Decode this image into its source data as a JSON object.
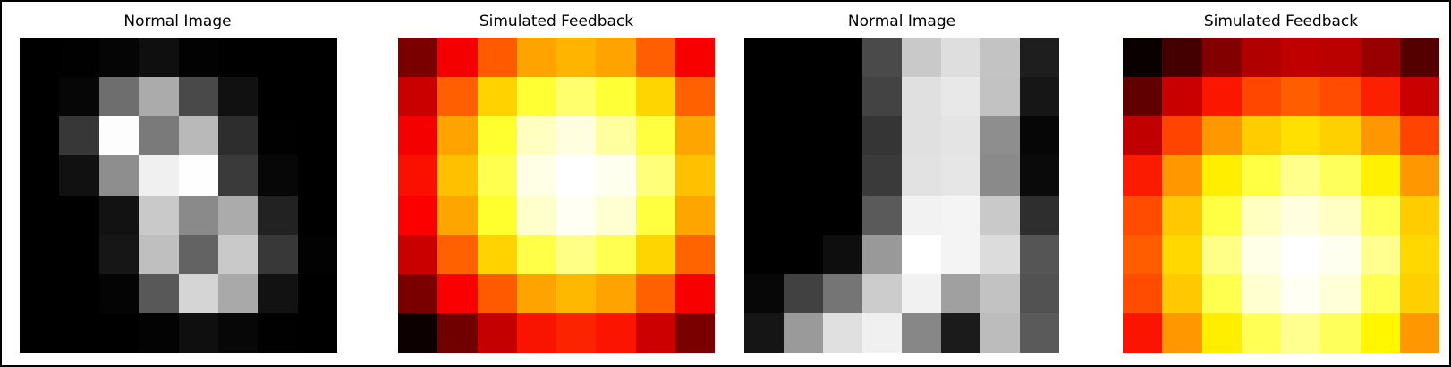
{
  "figure": {
    "background_color": "#ffffff",
    "border_color": "#000000"
  },
  "chart_data": [
    {
      "type": "heatmap",
      "title": "Normal Image",
      "colormap": "gray",
      "rows": 8,
      "cols": 8,
      "axes": "off",
      "cell_colors": [
        [
          "#000000",
          "#010101",
          "#050505",
          "#0f0f0f",
          "#020202",
          "#000000",
          "#000000",
          "#000000"
        ],
        [
          "#000000",
          "#060606",
          "#6e6e6e",
          "#ababab",
          "#494949",
          "#111111",
          "#000000",
          "#000000"
        ],
        [
          "#000000",
          "#373737",
          "#fdfdfd",
          "#7a7a7a",
          "#b9b9b9",
          "#2d2d2d",
          "#010101",
          "#000000"
        ],
        [
          "#000000",
          "#111111",
          "#8e8e8e",
          "#f0f0f0",
          "#fefefe",
          "#3a3a3a",
          "#070707",
          "#000000"
        ],
        [
          "#000000",
          "#000000",
          "#121212",
          "#c9c9c9",
          "#8a8a8a",
          "#ababab",
          "#222222",
          "#000000"
        ],
        [
          "#000000",
          "#000000",
          "#161616",
          "#bfbfbf",
          "#636363",
          "#c9c9c9",
          "#383838",
          "#020202"
        ],
        [
          "#000000",
          "#000000",
          "#040404",
          "#585858",
          "#d5d5d5",
          "#a9a9a9",
          "#121212",
          "#000000"
        ],
        [
          "#000000",
          "#000000",
          "#000000",
          "#030303",
          "#0f0f0f",
          "#070707",
          "#010101",
          "#000000"
        ]
      ]
    },
    {
      "type": "heatmap",
      "title": "Simulated Feedback",
      "colormap": "hot",
      "rows": 8,
      "cols": 8,
      "axes": "off",
      "cell_colors": [
        [
          "#7a0000",
          "#f40000",
          "#ff5a00",
          "#ffa300",
          "#ffb400",
          "#ffa300",
          "#ff5f00",
          "#f80000"
        ],
        [
          "#c80000",
          "#ff5f00",
          "#ffd200",
          "#ffff33",
          "#ffff6e",
          "#ffff38",
          "#ffd500",
          "#ff6000"
        ],
        [
          "#f40000",
          "#ffa300",
          "#ffff30",
          "#ffffc0",
          "#ffffe0",
          "#ffffa0",
          "#ffff40",
          "#ffa500"
        ],
        [
          "#fb1000",
          "#ffc000",
          "#ffff50",
          "#ffffe6",
          "#ffffff",
          "#fffff0",
          "#ffff7a",
          "#ffc000"
        ],
        [
          "#fc0000",
          "#ffa500",
          "#ffff2e",
          "#ffffcc",
          "#fffff4",
          "#ffffd2",
          "#ffff40",
          "#ffa500"
        ],
        [
          "#c80000",
          "#ff6000",
          "#ffd200",
          "#ffff48",
          "#ffff86",
          "#ffff52",
          "#ffd500",
          "#ff6400"
        ],
        [
          "#7a0000",
          "#fb0000",
          "#ff5a00",
          "#ffa300",
          "#ffb800",
          "#ffa300",
          "#ff6000",
          "#f80000"
        ],
        [
          "#0d0000",
          "#700000",
          "#c40000",
          "#f81400",
          "#fc2400",
          "#fb1400",
          "#cc0000",
          "#7a0000"
        ]
      ]
    },
    {
      "type": "heatmap",
      "title": "Normal Image",
      "colormap": "gray",
      "rows": 8,
      "cols": 8,
      "axes": "off",
      "cell_colors": [
        [
          "#000000",
          "#000000",
          "#000000",
          "#4a4a4a",
          "#c9c9c9",
          "#dedede",
          "#c3c3c3",
          "#1e1e1e"
        ],
        [
          "#000000",
          "#000000",
          "#000000",
          "#434343",
          "#e0e0e0",
          "#e8e8e8",
          "#c2c2c2",
          "#161616"
        ],
        [
          "#000000",
          "#000000",
          "#000000",
          "#353535",
          "#e0e0e0",
          "#e4e4e4",
          "#8e8e8e",
          "#060606"
        ],
        [
          "#000000",
          "#000000",
          "#000000",
          "#3a3a3a",
          "#e2e2e2",
          "#e6e6e6",
          "#8a8a8a",
          "#0a0a0a"
        ],
        [
          "#000000",
          "#000000",
          "#000000",
          "#5a5a5a",
          "#f2f2f2",
          "#f4f4f4",
          "#c9c9c9",
          "#2e2e2e"
        ],
        [
          "#000000",
          "#000000",
          "#0e0e0e",
          "#999999",
          "#ffffff",
          "#f4f4f4",
          "#dcdcdc",
          "#555555"
        ],
        [
          "#070707",
          "#414141",
          "#757575",
          "#cccccc",
          "#f1f1f1",
          "#a0a0a0",
          "#c2c2c2",
          "#525252"
        ],
        [
          "#151515",
          "#9a9a9a",
          "#e0e0e0",
          "#f0f0f0",
          "#878787",
          "#1b1b1b",
          "#bcbcbc",
          "#5a5a5a"
        ]
      ]
    },
    {
      "type": "heatmap",
      "title": "Simulated Feedback",
      "colormap": "hot",
      "rows": 8,
      "cols": 8,
      "axes": "off",
      "cell_colors": [
        [
          "#0a0000",
          "#440000",
          "#820000",
          "#b00000",
          "#c00000",
          "#bb0000",
          "#980000",
          "#550000"
        ],
        [
          "#600000",
          "#c80000",
          "#fb1600",
          "#ff4700",
          "#ff5d00",
          "#ff4c00",
          "#fb2000",
          "#c80000"
        ],
        [
          "#c00000",
          "#ff4400",
          "#ff9800",
          "#ffcc00",
          "#ffe000",
          "#ffd000",
          "#ff9800",
          "#ff4400"
        ],
        [
          "#fb1c00",
          "#ff9800",
          "#ffee00",
          "#ffff44",
          "#ffff8c",
          "#ffff5c",
          "#fff200",
          "#ff9800"
        ],
        [
          "#ff4c00",
          "#ffc800",
          "#ffff44",
          "#ffffc0",
          "#ffffe0",
          "#ffffc4",
          "#ffff55",
          "#ffcc00"
        ],
        [
          "#ff5d00",
          "#ffd800",
          "#ffff88",
          "#ffffe8",
          "#ffffff",
          "#fffff0",
          "#ffff90",
          "#ffd800"
        ],
        [
          "#ff4c00",
          "#ffc800",
          "#ffff50",
          "#ffffd0",
          "#fffff4",
          "#ffffd8",
          "#ffff55",
          "#ffd000"
        ],
        [
          "#fb1400",
          "#ff9800",
          "#ffee00",
          "#ffff55",
          "#ffff90",
          "#ffff5c",
          "#fff600",
          "#ff9800"
        ]
      ]
    }
  ]
}
